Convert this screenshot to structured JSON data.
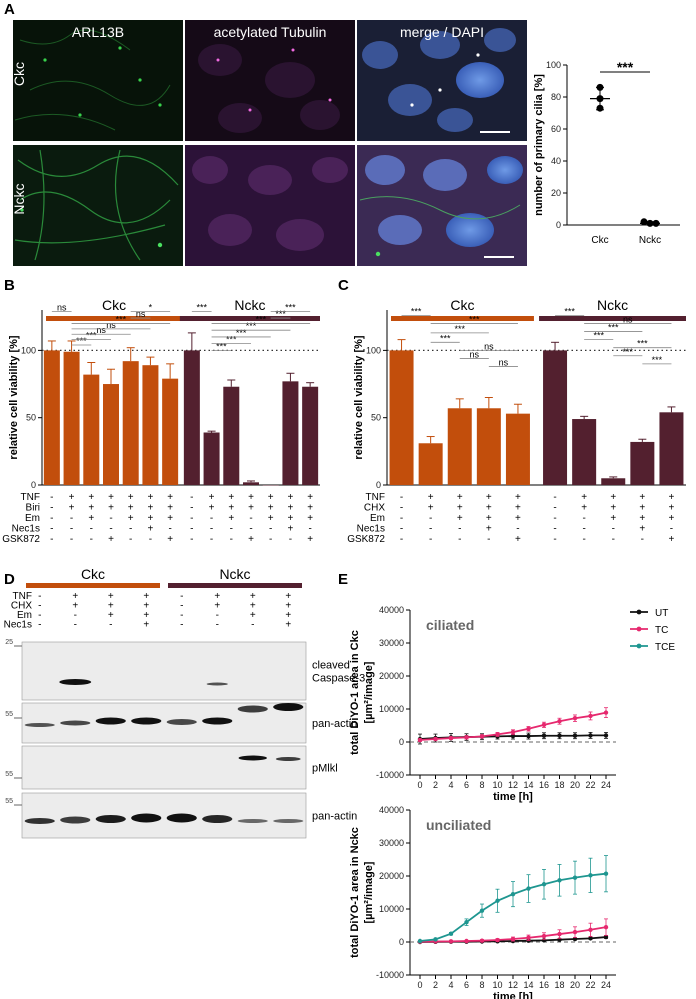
{
  "panels": {
    "A": "A",
    "B": "B",
    "C": "C",
    "D": "D",
    "E": "E"
  },
  "panel_a": {
    "column_titles": [
      "ARL13B",
      "acetylated Tubulin",
      "merge / DAPI"
    ],
    "row_labels": [
      "Ckc",
      "Nckc"
    ],
    "colors": {
      "green": "#2fb24a",
      "magenta": "#d63fc0",
      "blue": "#4f7ad0"
    }
  },
  "chart_a": {
    "type": "scatter",
    "ylabel": "number of primary cilia [%]",
    "categories": [
      "Ckc",
      "Nckc"
    ],
    "yticks": [
      0,
      20,
      40,
      60,
      80,
      100
    ],
    "ylim": [
      0,
      100
    ],
    "points": [
      [
        79,
        86,
        73
      ],
      [
        1,
        2,
        1
      ]
    ],
    "means": [
      79,
      1
    ],
    "sds": [
      7,
      1
    ],
    "significance": "***"
  },
  "chart_b": {
    "type": "bar",
    "ylabel": "relative cell viability [%]",
    "groups": [
      "Ckc",
      "Nckc"
    ],
    "ylim": [
      0,
      130
    ],
    "yticks": [
      0,
      50,
      100
    ],
    "reference_line": 100,
    "values": [
      100,
      99,
      82,
      75,
      92,
      89,
      79,
      100,
      39,
      73,
      2,
      0,
      77,
      73
    ],
    "errors": [
      7,
      8,
      9,
      11,
      10,
      6,
      11,
      13,
      1,
      5,
      1,
      0,
      6,
      3
    ],
    "colors": {
      "ckc": "#c24e0c",
      "nckc": "#53202f"
    },
    "row_labels": [
      "TNF",
      "Biri",
      "Em",
      "Nec1s",
      "GSK872"
    ],
    "treatment_rows": [
      [
        "-",
        "+",
        "+",
        "+",
        "+",
        "+",
        "+",
        "-",
        "+",
        "+",
        "+",
        "+",
        "+",
        "+"
      ],
      [
        "-",
        "+",
        "+",
        "+",
        "+",
        "+",
        "+",
        "-",
        "+",
        "+",
        "+",
        "+",
        "+",
        "+"
      ],
      [
        "-",
        "-",
        "+",
        "-",
        "+",
        "+",
        "+",
        "-",
        "-",
        "+",
        "-",
        "+",
        "+",
        "+"
      ],
      [
        "-",
        "-",
        "-",
        "-",
        "-",
        "+",
        "-",
        "-",
        "-",
        "-",
        "-",
        "-",
        "+",
        "-"
      ],
      [
        "-",
        "-",
        "-",
        "+",
        "-",
        "-",
        "+",
        "-",
        "-",
        "-",
        "+",
        "-",
        "-",
        "+"
      ]
    ],
    "comparisons": [
      {
        "i": 0,
        "j": 1,
        "label": "ns",
        "h": 129
      },
      {
        "i": 1,
        "j": 2,
        "label": "***",
        "h": 104
      },
      {
        "i": 1,
        "j": 3,
        "label": "***",
        "h": 108
      },
      {
        "i": 1,
        "j": 4,
        "label": "ns",
        "h": 112
      },
      {
        "i": 1,
        "j": 5,
        "label": "ns",
        "h": 116
      },
      {
        "i": 1,
        "j": 6,
        "label": "***",
        "h": 120
      },
      {
        "i": 4,
        "j": 5,
        "label": "ns",
        "h": 124
      },
      {
        "i": 4,
        "j": 6,
        "label": "*",
        "h": 129
      },
      {
        "i": 7,
        "j": 8,
        "label": "***",
        "h": 129
      },
      {
        "i": 8,
        "j": 9,
        "label": "***",
        "h": 100
      },
      {
        "i": 8,
        "j": 10,
        "label": "***",
        "h": 105
      },
      {
        "i": 8,
        "j": 11,
        "label": "***",
        "h": 110
      },
      {
        "i": 8,
        "j": 12,
        "label": "***",
        "h": 115
      },
      {
        "i": 8,
        "j": 13,
        "label": "***",
        "h": 120
      },
      {
        "i": 11,
        "j": 12,
        "label": "***",
        "h": 124
      },
      {
        "i": 11,
        "j": 13,
        "label": "***",
        "h": 129
      }
    ]
  },
  "chart_c": {
    "type": "bar",
    "ylabel": "relative cell viability [%]",
    "groups": [
      "Ckc",
      "Nckc"
    ],
    "ylim": [
      0,
      130
    ],
    "yticks": [
      0,
      50,
      100
    ],
    "reference_line": 100,
    "values": [
      100,
      31,
      57,
      57,
      53,
      100,
      49,
      5,
      32,
      54
    ],
    "errors": [
      8,
      5,
      7,
      8,
      7,
      6,
      2,
      1,
      2,
      4
    ],
    "colors": {
      "ckc": "#c24e0c",
      "nckc": "#53202f"
    },
    "row_labels": [
      "TNF",
      "CHX",
      "Em",
      "Nec1s",
      "GSK872"
    ],
    "treatment_rows": [
      [
        "-",
        "+",
        "+",
        "+",
        "+",
        "-",
        "+",
        "+",
        "+",
        "+"
      ],
      [
        "-",
        "+",
        "+",
        "+",
        "+",
        "-",
        "+",
        "+",
        "+",
        "+"
      ],
      [
        "-",
        "-",
        "+",
        "+",
        "+",
        "-",
        "-",
        "+",
        "+",
        "+"
      ],
      [
        "-",
        "-",
        "-",
        "+",
        "-",
        "-",
        "-",
        "-",
        "+",
        "-"
      ],
      [
        "-",
        "-",
        "-",
        "-",
        "+",
        "-",
        "-",
        "-",
        "-",
        "+"
      ]
    ],
    "comparisons": [
      {
        "i": 0,
        "j": 1,
        "label": "***",
        "h": 126
      },
      {
        "i": 1,
        "j": 2,
        "label": "***",
        "h": 106
      },
      {
        "i": 1,
        "j": 3,
        "label": "***",
        "h": 113
      },
      {
        "i": 1,
        "j": 4,
        "label": "***",
        "h": 120
      },
      {
        "i": 2,
        "j": 3,
        "label": "ns",
        "h": 94
      },
      {
        "i": 2,
        "j": 4,
        "label": "ns",
        "h": 100
      },
      {
        "i": 3,
        "j": 4,
        "label": "ns",
        "h": 88
      },
      {
        "i": 5,
        "j": 6,
        "label": "***",
        "h": 126
      },
      {
        "i": 6,
        "j": 7,
        "label": "***",
        "h": 108
      },
      {
        "i": 6,
        "j": 8,
        "label": "***",
        "h": 114
      },
      {
        "i": 6,
        "j": 9,
        "label": "ns",
        "h": 120
      },
      {
        "i": 7,
        "j": 8,
        "label": "***",
        "h": 96
      },
      {
        "i": 7,
        "j": 9,
        "label": "***",
        "h": 102
      },
      {
        "i": 8,
        "j": 9,
        "label": "***",
        "h": 90
      }
    ]
  },
  "panel_d": {
    "groups": [
      "Ckc",
      "Nckc"
    ],
    "row_labels": [
      "TNF",
      "CHX",
      "Em",
      "Nec1s"
    ],
    "lanes": [
      [
        "-",
        "-",
        "-",
        "-"
      ],
      [
        "+",
        "+",
        "-",
        "-"
      ],
      [
        "+",
        "+",
        "+",
        "-"
      ],
      [
        "+",
        "+",
        "+",
        "+"
      ],
      [
        "-",
        "-",
        "-",
        "-"
      ],
      [
        "+",
        "+",
        "-",
        "-"
      ],
      [
        "+",
        "+",
        "+",
        "-"
      ],
      [
        "+",
        "+",
        "+",
        "+"
      ]
    ],
    "markers": [
      "25",
      "55",
      "55",
      "55"
    ],
    "blot_labels": [
      "cleaved\nCaspase-3",
      "pan-actin",
      "pMlkl",
      "pan-actin"
    ],
    "blot_label_lines": [
      [
        "cleaved",
        "Caspase-3"
      ],
      [
        "pan-actin"
      ],
      [
        "pMlkl"
      ],
      [
        "pan-actin"
      ]
    ]
  },
  "chart_e": {
    "type": "line",
    "xlabel": "time [h]",
    "x": [
      0,
      2,
      4,
      6,
      8,
      10,
      12,
      14,
      16,
      18,
      20,
      22,
      24
    ],
    "yticks": [
      -10000,
      0,
      10000,
      20000,
      30000,
      40000
    ],
    "ylim": [
      -10000,
      40000
    ],
    "legend": [
      "UT",
      "TC",
      "TCE"
    ],
    "colors": {
      "UT": "#111111",
      "TC": "#e6286e",
      "TCE": "#1e9690"
    },
    "plots": [
      {
        "title": "ciliated",
        "ylabel_lines": [
          "total DiYO-1 area in Ckc",
          "[µm²/image]"
        ],
        "series": {
          "UT": {
            "values": [
              900,
              1200,
              1400,
              1500,
              1600,
              1700,
              1800,
              1800,
              1900,
              1900,
              1900,
              2000,
              2000
            ],
            "errors": [
              1500,
              1200,
              1200,
              1000,
              900,
              800,
              900,
              900,
              900,
              900,
              900,
              900,
              900
            ]
          },
          "TC": {
            "values": [
              600,
              900,
              1200,
              1400,
              1700,
              2300,
              3000,
              4000,
              5200,
              6300,
              7200,
              7900,
              8900
            ],
            "errors": [
              400,
              400,
              400,
              500,
              500,
              600,
              700,
              700,
              800,
              900,
              1000,
              1200,
              1500
            ]
          },
          "TCE": {
            "values": [],
            "errors": []
          }
        }
      },
      {
        "title": "unciliated",
        "ylabel_lines": [
          "total DiYO-1 area in Nckc",
          "[µm²/image]"
        ],
        "series": {
          "UT": {
            "values": [
              0,
              50,
              80,
              100,
              150,
              200,
              300,
              400,
              500,
              700,
              900,
              1100,
              1500
            ],
            "errors": [
              0,
              0,
              0,
              0,
              100,
              100,
              100,
              200,
              200,
              200,
              200,
              300,
              400
            ]
          },
          "TC": {
            "values": [
              100,
              150,
              200,
              300,
              400,
              600,
              900,
              1300,
              1800,
              2400,
              3000,
              3700,
              4500
            ],
            "errors": [
              0,
              50,
              100,
              200,
              300,
              400,
              600,
              800,
              1000,
              1300,
              1600,
              2000,
              2500
            ]
          },
          "TCE": {
            "values": [
              300,
              800,
              2500,
              6000,
              9500,
              12500,
              14500,
              16200,
              17500,
              18700,
              19500,
              20200,
              20700
            ],
            "errors": [
              100,
              200,
              400,
              1000,
              2000,
              3500,
              3800,
              4200,
              4500,
              4800,
              5000,
              5200,
              5500
            ]
          }
        }
      }
    ]
  }
}
